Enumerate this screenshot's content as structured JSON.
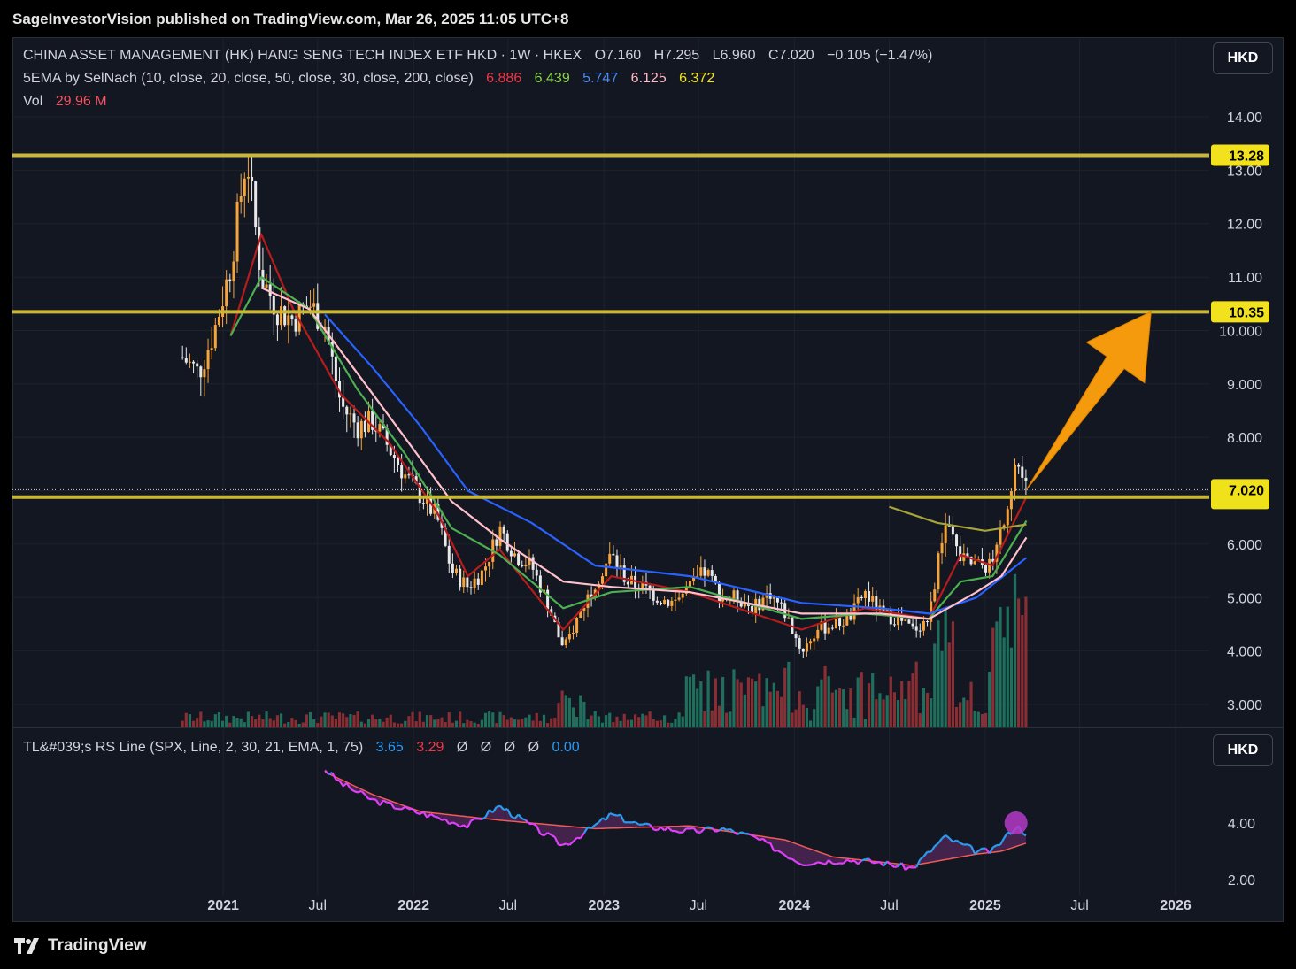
{
  "header": {
    "published": "SageInvestorVision published on TradingView.com, Mar 26, 2025 11:05 UTC+8"
  },
  "legend": {
    "symbol": "CHINA ASSET MANAGEMENT (HK) HANG SENG TECH INDEX ETF HKD · 1W · HKEX",
    "ohlc": {
      "open": "O7.160",
      "high": "H7.295",
      "low": "L6.960",
      "close": "C7.020",
      "change": "−0.105 (−1.47%)"
    },
    "ema_label": "5EMA by SelNach (10, close, 20, close, 50, close, 30, close, 200, close)",
    "ema_values": [
      "6.886",
      "6.439",
      "5.747",
      "6.125",
      "6.372"
    ],
    "vol_label": "Vol",
    "vol_value": "29.96 M",
    "rs_label": "TL&#039;s RS Line (SPX, Line, 2, 30, 21, EMA, 1, 75)",
    "rs_values": [
      "3.65",
      "3.29",
      "Ø",
      "Ø",
      "Ø",
      "Ø",
      "0.00"
    ]
  },
  "currency_buttons": {
    "main": "HKD",
    "rs": "HKD"
  },
  "footer": {
    "brand": "TradingView"
  },
  "colors": {
    "background": "#131722",
    "up": "#f7a43a",
    "down": "#e8e8e8",
    "ema10": "#b71c1c",
    "ema20": "#4caf50",
    "ema50": "#2962ff",
    "ema30": "#ffc0cb",
    "ema200": "#a7a43a",
    "level": "#c9b73a",
    "arrow": "#f59a0c",
    "rs_up": "#2b9bf0",
    "rs_down": "#e040fb"
  },
  "chart_data": [
    {
      "type": "candlestick",
      "interval": "1W",
      "y_ticks": [
        "14.00",
        "13.00",
        "12.00",
        "11.00",
        "10.000",
        "9.000",
        "8.000",
        "7.000",
        "6.000",
        "5.000",
        "4.000",
        "3.000"
      ],
      "x_ticks": [
        "2021",
        "Jul",
        "2022",
        "Jul",
        "2023",
        "Jul",
        "2024",
        "Jul",
        "2025",
        "Jul",
        "2026"
      ],
      "ylim": [
        2.6,
        14.6
      ],
      "horizontal_levels": [
        13.28,
        10.35,
        6.88
      ],
      "price_labels": [
        "13.28",
        "10.35",
        "7.020"
      ],
      "current_price": 7.02,
      "projection": {
        "from": 7.02,
        "to": 10.35,
        "description": "arrow"
      },
      "close_path": [
        [
          "2020-10-15",
          9.5
        ],
        [
          "2020-11-15",
          9.2
        ],
        [
          "2020-12-15",
          10.0
        ],
        [
          "2021-01-15",
          11.2
        ],
        [
          "2021-02-15",
          13.3
        ],
        [
          "2021-03-15",
          11.0
        ],
        [
          "2021-04-15",
          10.4
        ],
        [
          "2021-05-15",
          10.2
        ],
        [
          "2021-06-15",
          10.5
        ],
        [
          "2021-07-15",
          10.1
        ],
        [
          "2021-08-15",
          8.6
        ],
        [
          "2021-09-15",
          8.2
        ],
        [
          "2021-10-15",
          8.3
        ],
        [
          "2021-11-15",
          7.8
        ],
        [
          "2021-12-15",
          7.3
        ],
        [
          "2022-01-15",
          6.9
        ],
        [
          "2022-02-15",
          6.5
        ],
        [
          "2022-03-15",
          5.5
        ],
        [
          "2022-04-15",
          5.2
        ],
        [
          "2022-05-15",
          5.5
        ],
        [
          "2022-06-15",
          6.3
        ],
        [
          "2022-07-15",
          5.8
        ],
        [
          "2022-08-15",
          5.6
        ],
        [
          "2022-09-15",
          4.9
        ],
        [
          "2022-10-15",
          4.0
        ],
        [
          "2022-11-15",
          4.7
        ],
        [
          "2022-12-15",
          5.3
        ],
        [
          "2023-01-15",
          5.8
        ],
        [
          "2023-02-15",
          5.3
        ],
        [
          "2023-03-15",
          5.2
        ],
        [
          "2023-04-15",
          5.0
        ],
        [
          "2023-05-15",
          4.9
        ],
        [
          "2023-06-15",
          5.2
        ],
        [
          "2023-07-15",
          5.5
        ],
        [
          "2023-08-15",
          5.0
        ],
        [
          "2023-09-15",
          5.0
        ],
        [
          "2023-10-15",
          4.8
        ],
        [
          "2023-11-15",
          5.1
        ],
        [
          "2023-12-15",
          4.7
        ],
        [
          "2024-01-15",
          4.0
        ],
        [
          "2024-02-15",
          4.4
        ],
        [
          "2024-03-15",
          4.5
        ],
        [
          "2024-04-15",
          4.6
        ],
        [
          "2024-05-15",
          5.1
        ],
        [
          "2024-06-15",
          4.7
        ],
        [
          "2024-07-15",
          4.6
        ],
        [
          "2024-08-15",
          4.4
        ],
        [
          "2024-09-15",
          4.6
        ],
        [
          "2024-10-15",
          6.4
        ],
        [
          "2024-11-15",
          5.7
        ],
        [
          "2024-12-15",
          5.6
        ],
        [
          "2025-01-15",
          5.6
        ],
        [
          "2025-02-15",
          6.9
        ],
        [
          "2025-03-01",
          7.6
        ],
        [
          "2025-03-21",
          7.02
        ]
      ],
      "ema_series": [
        {
          "label": "EMA 10",
          "values": [
            [
              "2021-01-15",
              9.9
            ],
            [
              "2021-03-15",
              11.8
            ],
            [
              "2021-05-15",
              10.4
            ],
            [
              "2021-08-15",
              8.8
            ],
            [
              "2021-11-15",
              7.9
            ],
            [
              "2022-02-15",
              6.6
            ],
            [
              "2022-04-15",
              5.4
            ],
            [
              "2022-06-15",
              5.9
            ],
            [
              "2022-10-15",
              4.4
            ],
            [
              "2023-01-15",
              5.4
            ],
            [
              "2023-06-15",
              5.1
            ],
            [
              "2024-01-15",
              4.4
            ],
            [
              "2024-05-15",
              4.8
            ],
            [
              "2024-09-15",
              4.6
            ],
            [
              "2024-11-15",
              5.8
            ],
            [
              "2025-01-15",
              5.6
            ],
            [
              "2025-03-21",
              6.886
            ]
          ]
        },
        {
          "label": "EMA 20",
          "values": [
            [
              "2021-01-15",
              9.9
            ],
            [
              "2021-03-15",
              11.0
            ],
            [
              "2021-06-15",
              10.4
            ],
            [
              "2021-09-15",
              8.9
            ],
            [
              "2021-12-15",
              7.7
            ],
            [
              "2022-03-15",
              6.3
            ],
            [
              "2022-06-15",
              5.8
            ],
            [
              "2022-10-15",
              4.8
            ],
            [
              "2023-01-15",
              5.1
            ],
            [
              "2023-06-15",
              5.2
            ],
            [
              "2024-01-15",
              4.6
            ],
            [
              "2024-05-15",
              4.7
            ],
            [
              "2024-09-15",
              4.6
            ],
            [
              "2024-11-15",
              5.3
            ],
            [
              "2025-01-15",
              5.4
            ],
            [
              "2025-03-21",
              6.439
            ]
          ]
        },
        {
          "label": "EMA 50",
          "values": [
            [
              "2021-07-15",
              10.3
            ],
            [
              "2021-10-15",
              9.3
            ],
            [
              "2022-01-15",
              8.2
            ],
            [
              "2022-04-15",
              7.0
            ],
            [
              "2022-08-15",
              6.4
            ],
            [
              "2022-12-15",
              5.6
            ],
            [
              "2023-06-15",
              5.4
            ],
            [
              "2024-01-15",
              4.9
            ],
            [
              "2024-06-15",
              4.8
            ],
            [
              "2024-09-15",
              4.7
            ],
            [
              "2024-12-15",
              5.0
            ],
            [
              "2025-03-21",
              5.747
            ]
          ]
        },
        {
          "label": "EMA 30",
          "values": [
            [
              "2021-03-15",
              10.8
            ],
            [
              "2021-06-15",
              10.4
            ],
            [
              "2021-09-15",
              9.2
            ],
            [
              "2021-12-15",
              8.0
            ],
            [
              "2022-03-15",
              6.8
            ],
            [
              "2022-06-15",
              6.1
            ],
            [
              "2022-10-15",
              5.3
            ],
            [
              "2023-01-15",
              5.2
            ],
            [
              "2023-06-15",
              5.1
            ],
            [
              "2024-01-15",
              4.7
            ],
            [
              "2024-06-15",
              4.7
            ],
            [
              "2024-09-15",
              4.6
            ],
            [
              "2024-12-15",
              5.1
            ],
            [
              "2025-02-01",
              5.4
            ],
            [
              "2025-03-21",
              6.125
            ]
          ]
        },
        {
          "label": "EMA 200",
          "values": [
            [
              "2024-07-01",
              6.7
            ],
            [
              "2024-10-01",
              6.4
            ],
            [
              "2025-01-01",
              6.25
            ],
            [
              "2025-03-21",
              6.372
            ]
          ]
        }
      ],
      "volume_last": "29.96 M"
    },
    {
      "type": "line",
      "y_ticks": [
        "4.00",
        "2.00"
      ],
      "ylim": [
        1.8,
        6.2
      ],
      "rs_line": [
        [
          "2021-07-15",
          5.9
        ],
        [
          "2021-08-15",
          5.4
        ],
        [
          "2021-10-15",
          4.8
        ],
        [
          "2021-12-15",
          4.5
        ],
        [
          "2022-02-15",
          4.2
        ],
        [
          "2022-04-15",
          3.9
        ],
        [
          "2022-06-15",
          4.6
        ],
        [
          "2022-08-15",
          3.9
        ],
        [
          "2022-10-15",
          3.2
        ],
        [
          "2022-12-15",
          3.9
        ],
        [
          "2023-01-15",
          4.3
        ],
        [
          "2023-03-15",
          3.9
        ],
        [
          "2023-06-15",
          3.7
        ],
        [
          "2023-08-15",
          3.8
        ],
        [
          "2023-10-15",
          3.5
        ],
        [
          "2024-01-15",
          2.6
        ],
        [
          "2024-04-15",
          2.7
        ],
        [
          "2024-06-15",
          2.6
        ],
        [
          "2024-08-15",
          2.4
        ],
        [
          "2024-10-15",
          3.5
        ],
        [
          "2024-12-15",
          3.0
        ],
        [
          "2025-01-15",
          3.0
        ],
        [
          "2025-03-01",
          3.9
        ],
        [
          "2025-03-21",
          3.65
        ]
      ],
      "rs_ma": [
        [
          "2021-07-15",
          5.8
        ],
        [
          "2021-10-15",
          5.0
        ],
        [
          "2022-01-15",
          4.4
        ],
        [
          "2022-06-15",
          4.1
        ],
        [
          "2022-12-15",
          3.8
        ],
        [
          "2023-06-15",
          3.9
        ],
        [
          "2023-12-15",
          3.4
        ],
        [
          "2024-03-15",
          2.8
        ],
        [
          "2024-08-15",
          2.5
        ],
        [
          "2024-12-15",
          2.9
        ],
        [
          "2025-02-01",
          3.0
        ],
        [
          "2025-03-21",
          3.29
        ]
      ],
      "current": "3.65"
    }
  ]
}
